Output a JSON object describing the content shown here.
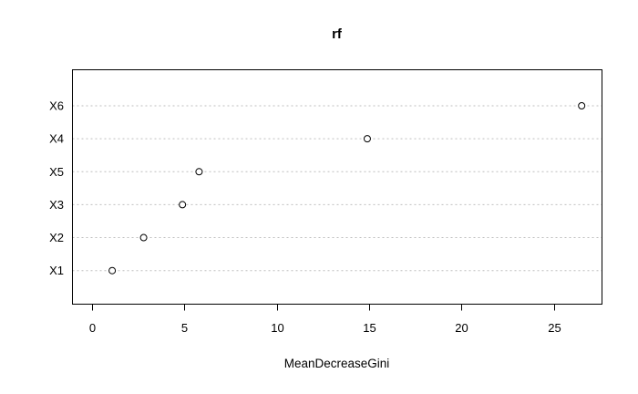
{
  "chart_data": {
    "type": "scatter",
    "variant": "dotchart",
    "title": "rf",
    "xlabel": "MeanDecreaseGini",
    "ylabel": "",
    "categories": [
      "X6",
      "X4",
      "X5",
      "X3",
      "X2",
      "X1"
    ],
    "values": [
      26.5,
      14.9,
      5.8,
      4.9,
      2.8,
      1.1
    ],
    "x_ticks": [
      0,
      5,
      10,
      15,
      20,
      25
    ],
    "xlim": [
      -1.05,
      27.6
    ],
    "grid": "horizontal dashed line per category",
    "legend": "none",
    "colors": {
      "background": "#ffffff",
      "axis": "#000000",
      "grid": "#bebebe",
      "point_stroke": "#000000",
      "point_fill": "#ffffff",
      "text": "#000000"
    }
  }
}
